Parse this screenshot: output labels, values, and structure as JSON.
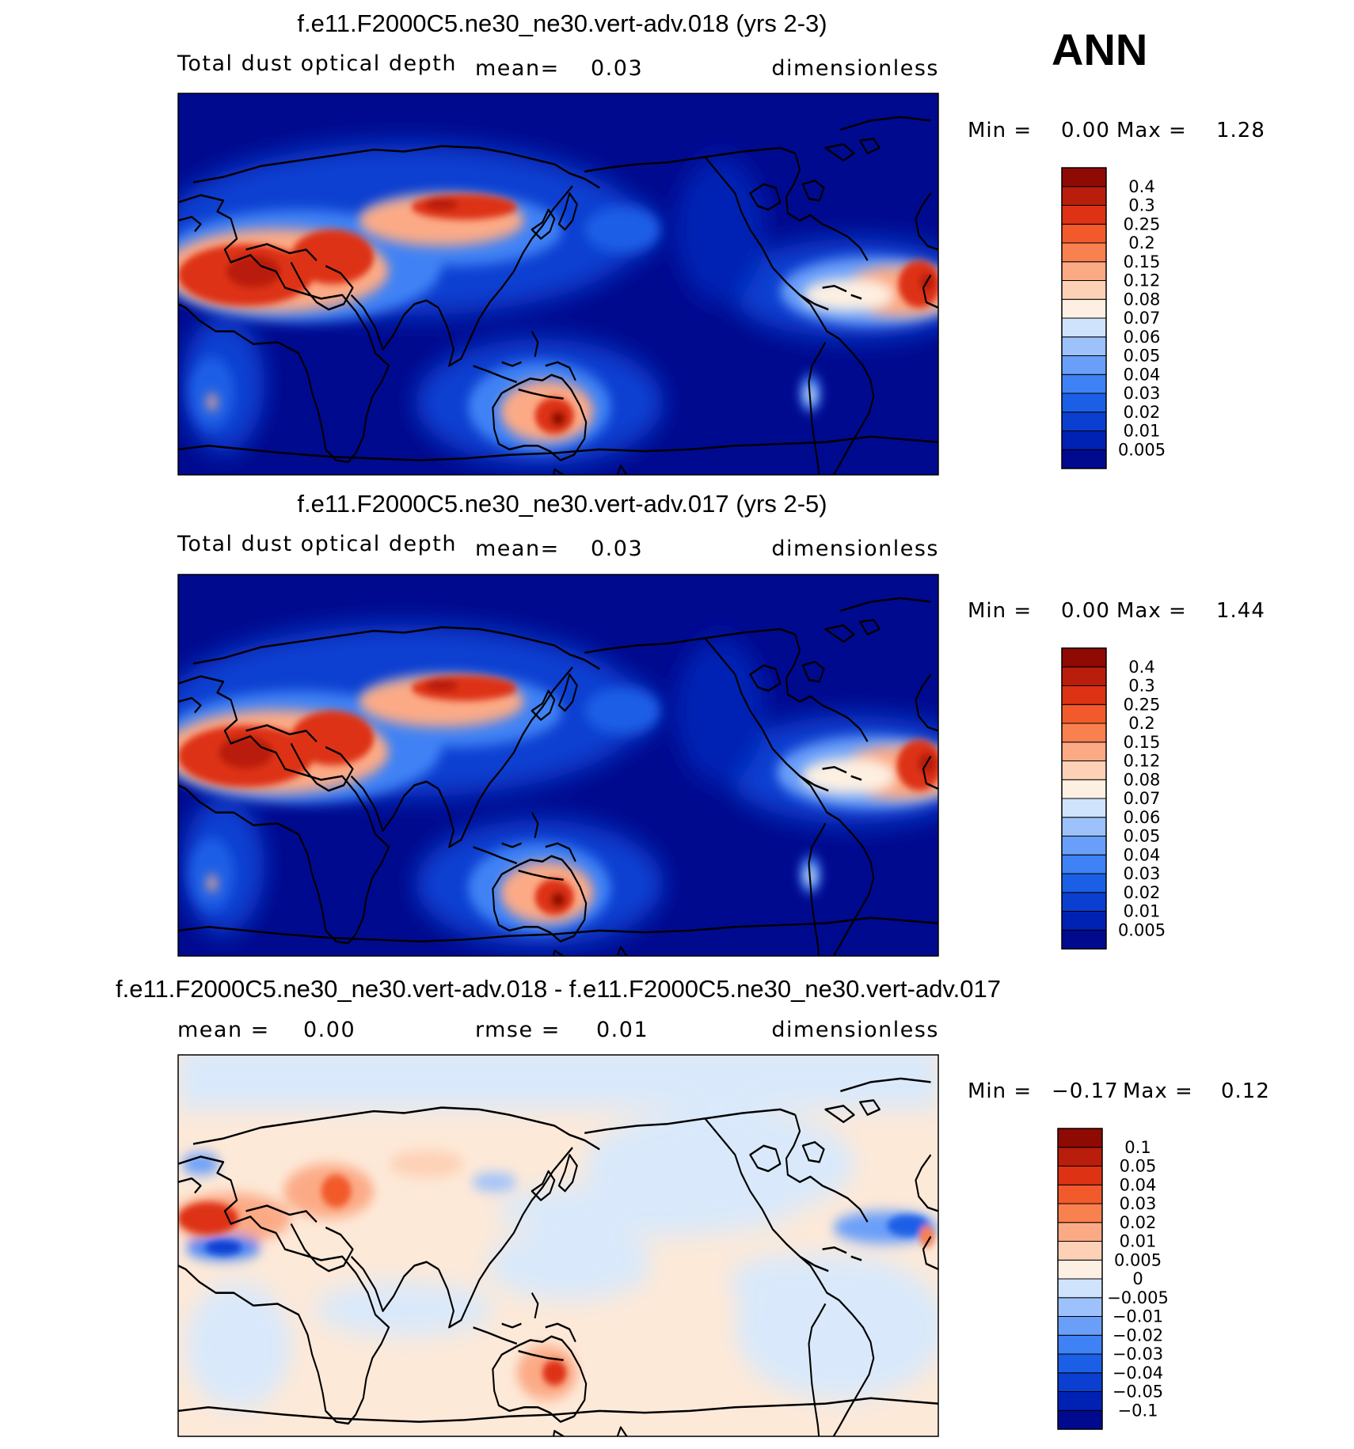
{
  "ann_label": "ANN",
  "panels": [
    {
      "title": "f.e11.F2000C5.ne30_ne30.vert-adv.018 (yrs 2-3)",
      "variable": "Total dust optical depth",
      "mean_label": "mean=",
      "mean_value": "0.03",
      "units": "dimensionless",
      "min_label": "Min =",
      "min_value": "0.00",
      "max_label": "Max =",
      "max_value": "1.28",
      "colorbar": {
        "colors": [
          "#000a8f",
          "#0022b4",
          "#0a3fd1",
          "#1b5fe6",
          "#3f82f5",
          "#6a9ff9",
          "#9dc1fb",
          "#cfe3fd",
          "#fdf0e2",
          "#fdd1b6",
          "#fcaa86",
          "#f9804f",
          "#f25a2b",
          "#dd3314",
          "#b91d0b",
          "#8e0a02"
        ],
        "labels": [
          "0.005",
          "0.01",
          "0.02",
          "0.03",
          "0.04",
          "0.05",
          "0.06",
          "0.07",
          "0.08",
          "0.12",
          "0.15",
          "0.2",
          "0.25",
          "0.3",
          "0.4"
        ]
      }
    },
    {
      "title": "f.e11.F2000C5.ne30_ne30.vert-adv.017 (yrs 2-5)",
      "variable": "Total dust optical depth",
      "mean_label": "mean=",
      "mean_value": "0.03",
      "units": "dimensionless",
      "min_label": "Min =",
      "min_value": "0.00",
      "max_label": "Max =",
      "max_value": "1.44",
      "colorbar": {
        "colors": [
          "#000a8f",
          "#0022b4",
          "#0a3fd1",
          "#1b5fe6",
          "#3f82f5",
          "#6a9ff9",
          "#9dc1fb",
          "#cfe3fd",
          "#fdf0e2",
          "#fdd1b6",
          "#fcaa86",
          "#f9804f",
          "#f25a2b",
          "#dd3314",
          "#b91d0b",
          "#8e0a02"
        ],
        "labels": [
          "0.005",
          "0.01",
          "0.02",
          "0.03",
          "0.04",
          "0.05",
          "0.06",
          "0.07",
          "0.08",
          "0.12",
          "0.15",
          "0.2",
          "0.25",
          "0.3",
          "0.4"
        ]
      }
    },
    {
      "title": "f.e11.F2000C5.ne30_ne30.vert-adv.018 - f.e11.F2000C5.ne30_ne30.vert-adv.017",
      "mean_label": "mean =",
      "mean_value": "0.00",
      "rmse_label": "rmse =",
      "rmse_value": "0.01",
      "units": "dimensionless",
      "min_label": "Min =",
      "min_value": "−0.17",
      "max_label": "Max =",
      "max_value": "0.12",
      "colorbar": {
        "colors": [
          "#000a8f",
          "#0022b4",
          "#0a3fd1",
          "#1b5fe6",
          "#3f82f5",
          "#6a9ff9",
          "#9dc1fb",
          "#cfe3fd",
          "#fdf0e2",
          "#fdd1b6",
          "#fcaa86",
          "#f9804f",
          "#f25a2b",
          "#dd3314",
          "#b91d0b",
          "#8e0a02"
        ],
        "labels": [
          "−0.1",
          "−0.05",
          "−0.04",
          "−0.03",
          "−0.02",
          "−0.01",
          "−0.005",
          "0",
          "0.005",
          "0.01",
          "0.02",
          "0.03",
          "0.04",
          "0.05",
          "0.1"
        ]
      }
    }
  ]
}
